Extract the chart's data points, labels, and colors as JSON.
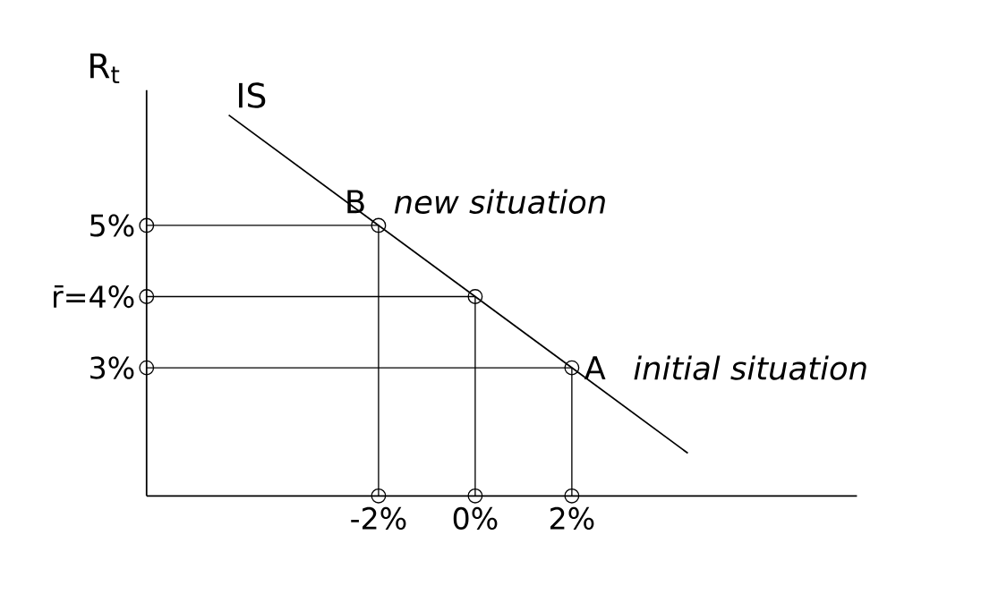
{
  "chart_data": {
    "type": "line",
    "ylabel": "R$_{t}$",
    "xlim": [
      -6.8,
      7.9
    ],
    "ylim": [
      1.2,
      6.9
    ],
    "xticks": [
      {
        "value": -2,
        "label": "-2%"
      },
      {
        "value": 0,
        "label": "0%"
      },
      {
        "value": 2,
        "label": "2%"
      }
    ],
    "yticks": [
      {
        "value": 3,
        "label": "3%"
      },
      {
        "value": 4,
        "label": "r̄=4%"
      },
      {
        "value": 5,
        "label": "5%"
      }
    ],
    "grid": false,
    "series": [
      {
        "name": "IS",
        "color": "#000000",
        "x": [
          -5.1,
          -2,
          0,
          2,
          4.4
        ],
        "values": [
          6.55,
          5,
          4,
          3,
          1.8
        ]
      },
      {
        "color": "#000000",
        "x": [
          -6.8,
          -2,
          -2
        ],
        "values": [
          5,
          5,
          1.2
        ],
        "marker": "circle"
      },
      {
        "color": "#000000",
        "x": [
          -6.8,
          0,
          0
        ],
        "values": [
          4,
          4,
          1.2
        ],
        "marker": "circle"
      },
      {
        "color": "#000000",
        "x": [
          -6.8,
          2,
          2
        ],
        "values": [
          3,
          3,
          1.2
        ],
        "marker": "circle"
      }
    ],
    "annotations": [
      {
        "text": "B",
        "x": -2,
        "y": 5
      },
      "new situation",
      {
        "text": "A",
        "x": 2,
        "y": 3
      },
      "initial situation"
    ]
  }
}
